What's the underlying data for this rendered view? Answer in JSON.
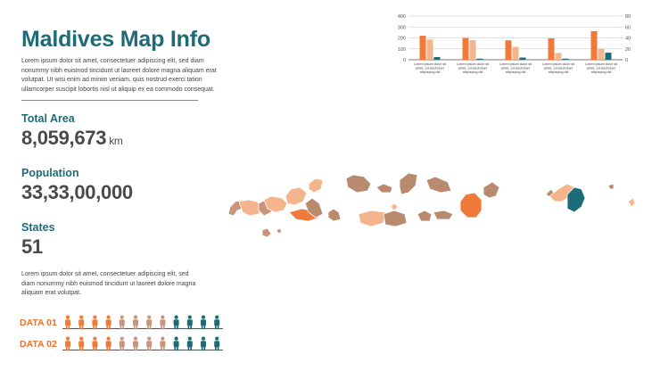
{
  "title": "Maldives Map Info",
  "intro_text": "Lorem ipsum dolor sit amet, consectetuer adipiscing elit, sed diam nonummy nibh euismod tincidunt ut laoreet dolore magna aliquam erat volutpat. Ut wisi enim ad minim veniam, quis nostrud exerci tation ullamcorper suscipit lobortis nisl ut aliquip ex ea commodo consequat.",
  "stats": {
    "total_area": {
      "label": "Total Area",
      "value": "8,059,673",
      "unit": "km"
    },
    "population": {
      "label": "Population",
      "value": "33,33,00,000"
    },
    "states": {
      "label": "States",
      "value": "51"
    }
  },
  "outro_text": "Lorem ipsum dolor sit amet, consectetuer adipiscing elit, sed diam nonummy nibh euismod tincidunt ut laoreet dolore magna aliquam erat volutpat.",
  "data_rows": [
    {
      "label": "DATA 01",
      "figures": [
        "orange",
        "orange",
        "orange",
        "orange",
        "tan",
        "tan",
        "tan",
        "tan",
        "teal",
        "teal",
        "teal",
        "teal"
      ]
    },
    {
      "label": "DATA 02",
      "figures": [
        "orange",
        "orange",
        "orange",
        "orange",
        "tan",
        "tan",
        "tan",
        "tan",
        "teal",
        "teal",
        "teal",
        "teal"
      ]
    }
  ],
  "colors": {
    "teal": "#1e6b78",
    "orange": "#f07a3a",
    "peach": "#f4b48c",
    "tan": "#c8957c",
    "brown": "#b98a6e",
    "gray": "#555555"
  },
  "chart_data": {
    "type": "bar",
    "categories": [
      "Lorem ipsum dolor sit amet, consectetuer adipiscing elit",
      "Lorem ipsum dolor sit amet, consectetuer adipiscing elit",
      "Lorem ipsum dolor sit amet, consectetuer adipiscing elit",
      "Lorem ipsum dolor sit amet, consectetuer adipiscing elit",
      "Lorem ipsum dolor sit amet, consectetuer adipiscing elit"
    ],
    "series": [
      {
        "values": [
          220,
          200,
          178,
          196,
          262
        ],
        "color": "#f07a3a",
        "axis": "left"
      },
      {
        "values": [
          185,
          180,
          118,
          62,
          100
        ],
        "color": "#f4b48c",
        "axis": "left"
      },
      {
        "values": [
          5,
          2,
          4,
          2,
          13
        ],
        "color": "#1e6b78",
        "axis": "right"
      }
    ],
    "ylim_left": [
      0,
      400
    ],
    "yticks_left": [
      0,
      100,
      200,
      300,
      400
    ],
    "ylim_right": [
      0,
      80
    ],
    "yticks_right": [
      0,
      20,
      40,
      60,
      80
    ],
    "grid": true,
    "xlabel": "",
    "ylabel": ""
  }
}
